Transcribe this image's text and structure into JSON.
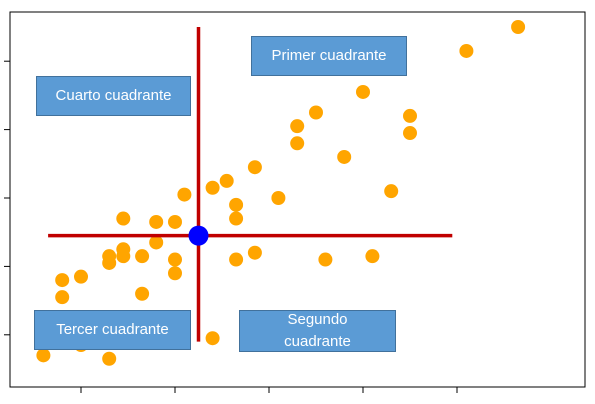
{
  "chart_data": {
    "type": "scatter",
    "title": "",
    "xlabel": "",
    "ylabel": "",
    "xlim": [
      0,
      10
    ],
    "ylim": [
      0,
      10
    ],
    "grid": false,
    "point_color": "#ffa500",
    "points": [
      {
        "x": 0.2,
        "y": 0.4
      },
      {
        "x": 0.6,
        "y": 2.1
      },
      {
        "x": 0.6,
        "y": 2.6
      },
      {
        "x": 1.0,
        "y": 0.7
      },
      {
        "x": 1.0,
        "y": 2.7
      },
      {
        "x": 1.6,
        "y": 0.3
      },
      {
        "x": 1.6,
        "y": 3.1
      },
      {
        "x": 1.6,
        "y": 3.3
      },
      {
        "x": 1.9,
        "y": 1.0
      },
      {
        "x": 1.9,
        "y": 3.3
      },
      {
        "x": 1.9,
        "y": 3.5
      },
      {
        "x": 1.9,
        "y": 4.4
      },
      {
        "x": 2.3,
        "y": 2.2
      },
      {
        "x": 2.3,
        "y": 3.3
      },
      {
        "x": 2.6,
        "y": 3.7
      },
      {
        "x": 2.6,
        "y": 4.3
      },
      {
        "x": 3.0,
        "y": 2.8
      },
      {
        "x": 3.0,
        "y": 3.2
      },
      {
        "x": 3.0,
        "y": 4.3
      },
      {
        "x": 3.2,
        "y": 5.1
      },
      {
        "x": 3.8,
        "y": 0.9
      },
      {
        "x": 3.8,
        "y": 5.3
      },
      {
        "x": 4.3,
        "y": 3.2
      },
      {
        "x": 4.3,
        "y": 4.4
      },
      {
        "x": 4.3,
        "y": 4.8
      },
      {
        "x": 4.1,
        "y": 5.5
      },
      {
        "x": 4.7,
        "y": 3.4
      },
      {
        "x": 4.7,
        "y": 5.9
      },
      {
        "x": 5.2,
        "y": 5.0
      },
      {
        "x": 5.6,
        "y": 6.6
      },
      {
        "x": 5.6,
        "y": 7.1
      },
      {
        "x": 6.0,
        "y": 7.5
      },
      {
        "x": 6.2,
        "y": 3.2
      },
      {
        "x": 6.6,
        "y": 6.2
      },
      {
        "x": 7.0,
        "y": 8.1
      },
      {
        "x": 7.2,
        "y": 3.3
      },
      {
        "x": 7.6,
        "y": 5.2
      },
      {
        "x": 8.0,
        "y": 6.9
      },
      {
        "x": 8.0,
        "y": 7.4
      },
      {
        "x": 9.2,
        "y": 9.3
      },
      {
        "x": 10.3,
        "y": 10.0
      }
    ],
    "center": {
      "x": 3.5,
      "y": 3.9,
      "color": "#0000ff"
    },
    "quadrant_lines": {
      "color": "#c00000",
      "vertical": {
        "x": 3.5,
        "y_from": 0.8,
        "y_to": 10.0
      },
      "horizontal": {
        "y": 3.9,
        "x_from": 0.3,
        "x_to": 8.9
      }
    },
    "x_ticks": [
      1,
      3,
      5,
      7,
      9
    ],
    "y_ticks": [
      1,
      3,
      5,
      7,
      9
    ]
  },
  "quadrants": [
    {
      "key": "q1",
      "label": "Primer cuadrante"
    },
    {
      "key": "q2",
      "label": "Segundo cuadrante"
    },
    {
      "key": "q3",
      "label": "Tercer cuadrante"
    },
    {
      "key": "q4",
      "label": "Cuarto cuadrante"
    }
  ]
}
